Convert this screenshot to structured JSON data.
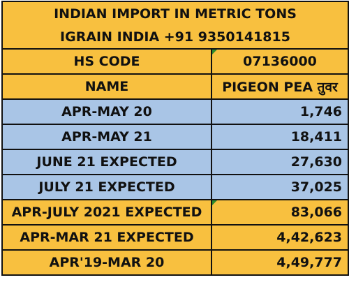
{
  "header": {
    "title": "INDIAN IMPORT IN METRIC TONS",
    "subtitle": "IGRAIN INDIA +91 9350141815"
  },
  "table": {
    "header_rows": [
      [
        "HS CODE",
        "07136000"
      ],
      [
        "NAME",
        "PIGEON PEA तुवर"
      ]
    ],
    "rows": [
      [
        "APR-MAY 20",
        "1,746"
      ],
      [
        "APR-MAY 21",
        "18,411"
      ],
      [
        "JUNE 21 EXPECTED",
        "27,630"
      ],
      [
        "JULY 21 EXPECTED",
        "37,025"
      ],
      [
        "APR-JULY 2021 EXPECTED",
        "83,066"
      ],
      [
        "APR-MAR 21 EXPECTED",
        "4,42,623"
      ],
      [
        "APR'19-MAR 20",
        "4,49,777"
      ]
    ]
  }
}
